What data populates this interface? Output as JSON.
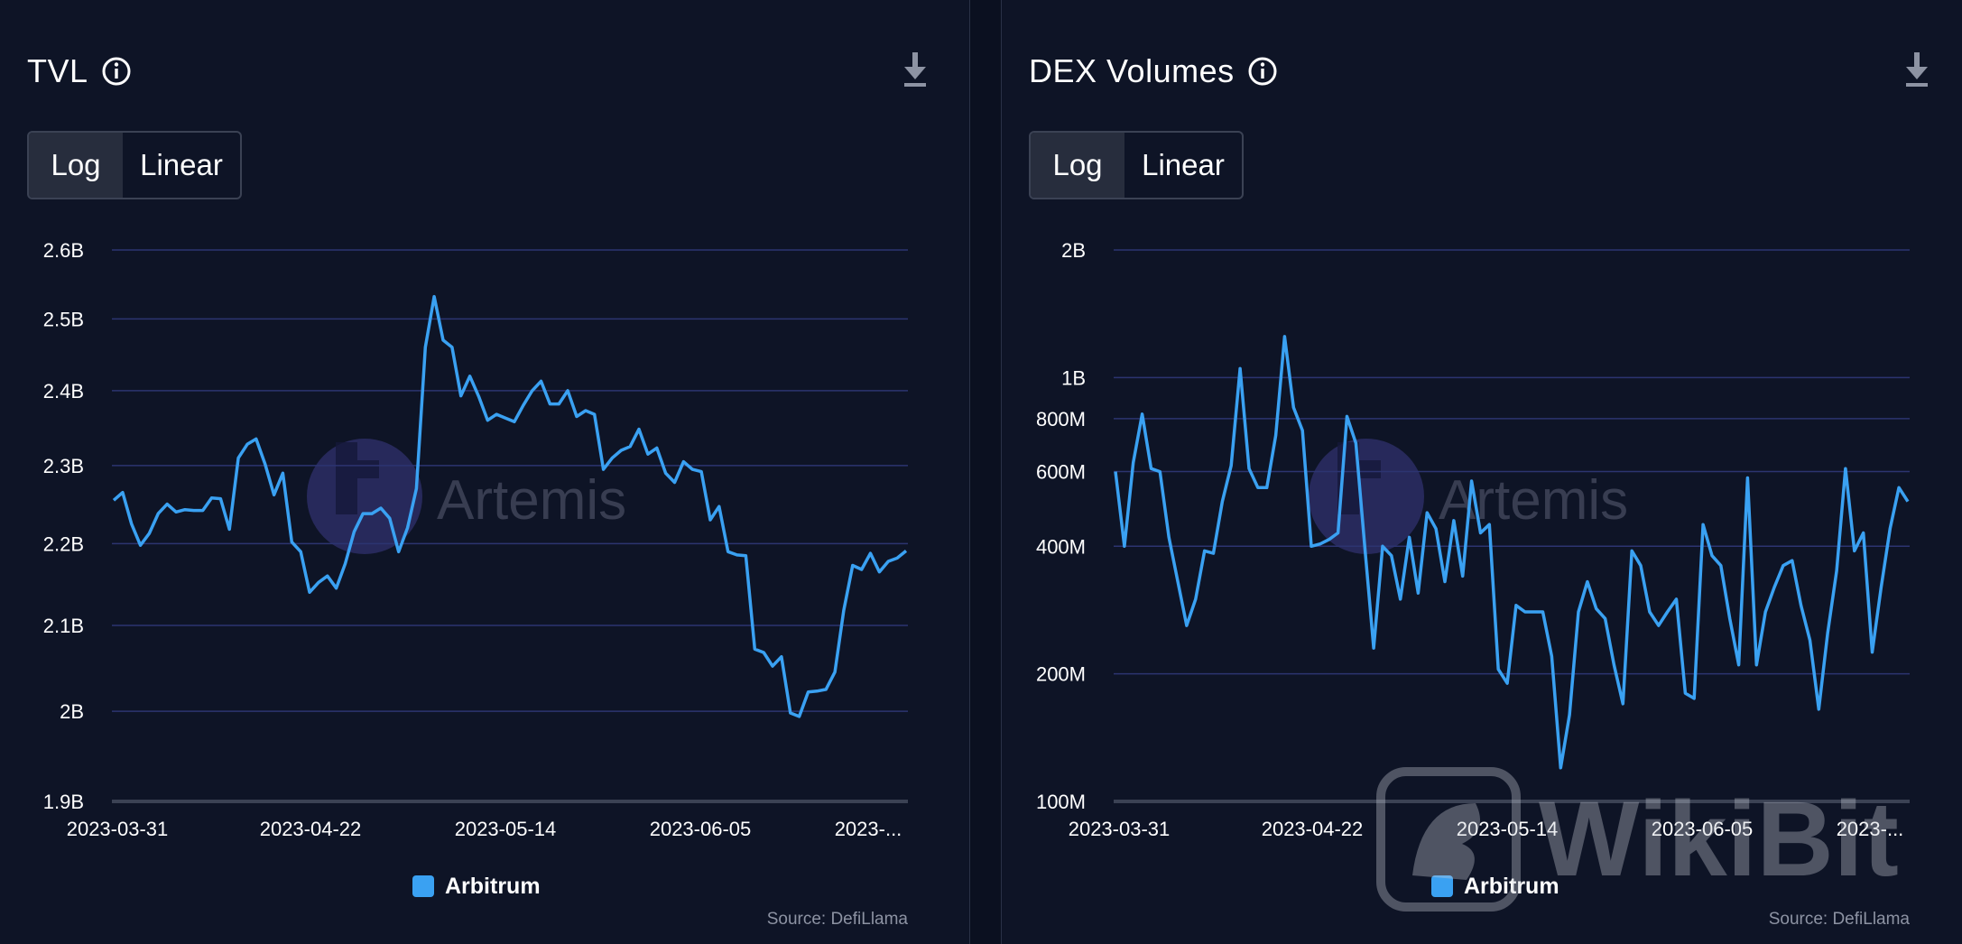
{
  "panels": {
    "tvl": {
      "title": "TVL",
      "scale_log_label": "Log",
      "scale_linear_label": "Linear",
      "legend_label": "Arbitrum",
      "source": "Source: DefiLlama",
      "watermark": "Artemis"
    },
    "dex": {
      "title": "DEX Volumes",
      "scale_log_label": "Log",
      "scale_linear_label": "Linear",
      "legend_label": "Arbitrum",
      "source": "Source: DefiLlama",
      "watermark": "Artemis"
    }
  },
  "overlay_watermark": "WikiBit",
  "colors": {
    "series": "#3aa1f2",
    "background": "#0e1426",
    "grid": "#2c3470"
  },
  "chart_data": [
    {
      "type": "line",
      "title": "TVL",
      "scale": "log",
      "y_ticks": [
        1900000000,
        2000000000,
        2100000000,
        2200000000,
        2300000000,
        2400000000,
        2500000000,
        2600000000
      ],
      "y_tick_labels": [
        "1.9B",
        "2B",
        "2.1B",
        "2.2B",
        "2.3B",
        "2.4B",
        "2.5B",
        "2.6B"
      ],
      "x_tick_labels": [
        "2023-03-31",
        "2023-04-22",
        "2023-05-14",
        "2023-06-05",
        "2023-..."
      ],
      "ylim": [
        1900000000,
        2600000000
      ],
      "series": [
        {
          "name": "Arbitrum",
          "values": [
            2.255,
            2.265,
            2.225,
            2.198,
            2.213,
            2.238,
            2.25,
            2.24,
            2.243,
            2.242,
            2.242,
            2.258,
            2.257,
            2.218,
            2.31,
            2.328,
            2.335,
            2.302,
            2.262,
            2.29,
            2.202,
            2.19,
            2.14,
            2.152,
            2.16,
            2.145,
            2.175,
            2.215,
            2.238,
            2.238,
            2.245,
            2.232,
            2.19,
            2.22,
            2.27,
            2.46,
            2.532,
            2.47,
            2.46,
            2.393,
            2.42,
            2.392,
            2.36,
            2.368,
            2.363,
            2.358,
            2.38,
            2.4,
            2.413,
            2.382,
            2.382,
            2.4,
            2.365,
            2.373,
            2.368,
            2.295,
            2.31,
            2.32,
            2.325,
            2.348,
            2.315,
            2.323,
            2.29,
            2.278,
            2.305,
            2.295,
            2.292,
            2.23,
            2.247,
            2.19,
            2.186,
            2.185,
            2.072,
            2.068,
            2.052,
            2.063,
            1.998,
            1.994,
            2.022,
            2.023,
            2.025,
            2.045,
            2.118,
            2.173,
            2.168,
            2.188,
            2.165,
            2.178,
            2.182,
            2.191
          ]
        }
      ]
    },
    {
      "type": "line",
      "title": "DEX Volumes",
      "scale": "log",
      "y_ticks": [
        100000000,
        200000000,
        400000000,
        600000000,
        800000000,
        1000000000,
        2000000000
      ],
      "y_tick_labels": [
        "100M",
        "200M",
        "400M",
        "600M",
        "800M",
        "1B",
        "2B"
      ],
      "x_tick_labels": [
        "2023-03-31",
        "2023-04-22",
        "2023-05-14",
        "2023-06-05",
        "2023-..."
      ],
      "ylim": [
        100000000,
        2000000000
      ],
      "series": [
        {
          "name": "Arbitrum",
          "values": [
            600,
            400,
            630,
            820,
            610,
            600,
            420,
            330,
            260,
            300,
            390,
            385,
            510,
            620,
            1050,
            610,
            550,
            550,
            730,
            1250,
            850,
            750,
            400,
            405,
            415,
            430,
            810,
            700,
            400,
            230,
            400,
            380,
            300,
            420,
            310,
            480,
            440,
            330,
            460,
            340,
            570,
            430,
            450,
            205,
            190,
            290,
            280,
            280,
            280,
            220,
            120,
            160,
            280,
            330,
            285,
            270,
            210,
            170,
            390,
            360,
            280,
            260,
            280,
            300,
            180,
            175,
            450,
            380,
            360,
            270,
            210,
            580,
            210,
            280,
            320,
            360,
            370,
            290,
            240,
            165,
            250,
            350,
            610,
            390,
            430,
            225,
            320,
            440,
            550,
            510
          ]
        }
      ]
    }
  ]
}
